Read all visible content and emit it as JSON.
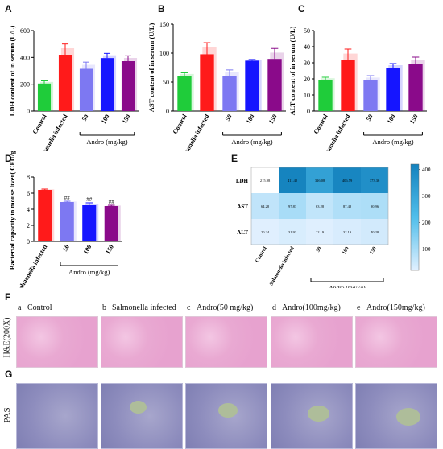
{
  "panel_letters": {
    "A": "A",
    "B": "B",
    "C": "C",
    "D": "D",
    "E": "E",
    "F": "F",
    "G": "G"
  },
  "colors": {
    "control": "#1fcc3a",
    "infected": "#ff1a1a",
    "d50": "#7d78f2",
    "d100": "#1515ff",
    "d150": "#8a0a8a",
    "gray": "#cccccc"
  },
  "chart_data": [
    {
      "id": "A",
      "type": "bar",
      "categories": [
        "Control",
        "Salmonella infected",
        "50",
        "100",
        "150"
      ],
      "values": [
        205,
        420,
        315,
        395,
        372
      ],
      "errors": [
        20,
        80,
        50,
        35,
        40
      ],
      "ylabel": "LDH content of in serum (U/L)",
      "ylim": [
        0,
        600
      ],
      "yticks": [
        0,
        200,
        400,
        600
      ],
      "group_label": "Andro (mg/kg)"
    },
    {
      "id": "B",
      "type": "bar",
      "categories": [
        "Control",
        "Salmonella infected",
        "50",
        "100",
        "150"
      ],
      "values": [
        61,
        98,
        61,
        87,
        90
      ],
      "errors": [
        5,
        20,
        10,
        2,
        18
      ],
      "ylabel": "AST content of in serum (U/L)",
      "ylim": [
        0,
        150
      ],
      "yticks": [
        0,
        50,
        100,
        150
      ],
      "group_label": "Andro (mg/kg)"
    },
    {
      "id": "C",
      "type": "bar",
      "categories": [
        "Control",
        "Salmonella infected",
        "50",
        "100",
        "150"
      ],
      "values": [
        19.5,
        31.5,
        19,
        27,
        29
      ],
      "errors": [
        1.5,
        7,
        3,
        2.5,
        4.5
      ],
      "ylabel": "ALT content of in serum (U/L)",
      "ylim": [
        0,
        50
      ],
      "yticks": [
        0,
        10,
        20,
        30,
        40,
        50
      ],
      "group_label": "Andro (mg/kg)"
    },
    {
      "id": "D",
      "type": "bar",
      "categories": [
        "Salmonella infected",
        "50",
        "100",
        "150"
      ],
      "values": [
        6.4,
        4.9,
        4.5,
        4.4
      ],
      "errors": [
        0.1,
        0.1,
        0.3,
        0.1
      ],
      "annotations": [
        "",
        "##",
        "##",
        "##"
      ],
      "ylabel": "Bacterial capacity in mouse liver( CFU/g)",
      "ylim": [
        0,
        8
      ],
      "yticks": [
        0,
        2,
        4,
        6,
        8
      ],
      "group_label": "Andro (mg/kg)"
    },
    {
      "id": "E",
      "type": "heatmap",
      "rows": [
        "LDH",
        "AST",
        "ALT"
      ],
      "columns": [
        "Control",
        "Salmonella infected",
        "50",
        "100",
        "150"
      ],
      "values": [
        [
          215.98,
          411.42,
          316.08,
          406.59,
          373.36
        ],
        [
          64.28,
          97.83,
          63.28,
          87.48,
          90.96
        ],
        [
          20.24,
          31.93,
          22.19,
          32.19,
          40.28
        ]
      ],
      "cell_text": [
        [
          "215.98",
          "411.42",
          "316.08",
          "406.59",
          "373.36"
        ],
        [
          "64.28",
          "97.83",
          "63.28",
          "87.48",
          "90.96"
        ],
        [
          "20.24",
          "31.93",
          "22.19",
          "32.19",
          "40.28"
        ]
      ],
      "colorbar_ticks": [
        "100",
        "200",
        "300",
        "400"
      ],
      "colorbar_range": [
        20,
        420
      ],
      "group_label": "Andro (mg/kg)"
    }
  ],
  "histology": {
    "row_F_label": "H&E(200X)",
    "row_G_label": "PAS",
    "sub_letters": [
      "a",
      "b",
      "c",
      "d",
      "e"
    ],
    "tile_titles": [
      "Control",
      "Salmonella infected",
      "Andro(50 mg/kg)",
      "Andro(100mg/kg)",
      "Andro(150mg/kg)"
    ]
  }
}
